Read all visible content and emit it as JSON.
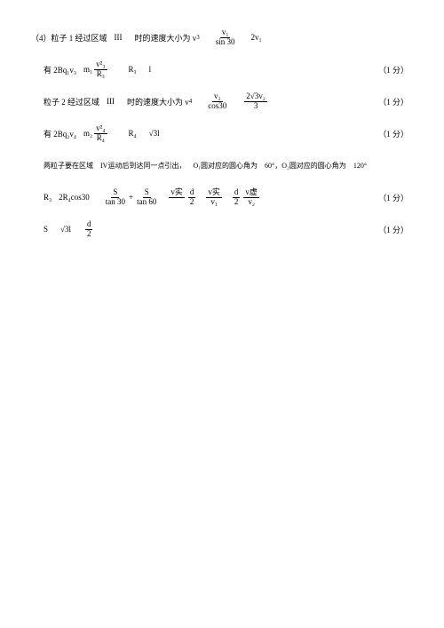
{
  "doc": {
    "lines": [
      {
        "prefix": "（4）粒子 1 经过区域",
        "region": "III",
        "mid": "时的速度大小为 v",
        "sub": "3",
        "rhs_num": "v₁",
        "rhs_den": "sin 30",
        "tail": "2v₁",
        "score": ""
      },
      {
        "prefix": "有 2Bq₁v₃",
        "term": "m₁",
        "frac_num": "v²₃",
        "frac_den": "R₃",
        "after": "R₃",
        "tail": "l",
        "score": "（1 分）"
      },
      {
        "prefix": "粒子 2 经过区域",
        "region": "III",
        "mid": "时的速度大小为 v",
        "sub": "4",
        "rhs_num": "v₂",
        "rhs_den": "cos30",
        "tail_num": "2√3v₂",
        "tail_den": "3",
        "score": "（1 分）"
      },
      {
        "prefix": "有 2Bq₂v₄",
        "term": "m₂",
        "frac_num": "v²₄",
        "frac_den": "R₄",
        "after": "R₄",
        "tail": "√3l",
        "score": "（1 分）"
      },
      {
        "prefix": "两粒子要在区域",
        "region": "IV",
        "mid": "运动后到达同一点引出，",
        "o1": "O₁",
        "text1": "圆对应的圆心角为",
        "ang1": "60°，",
        "o2": "O₂",
        "text2": "圆对应的圆心角为",
        "ang2": "120°",
        "score": ""
      },
      {
        "prefix": "R₃",
        "t1": "2R₄cos30",
        "f1n": "S",
        "f1d": "tan 30",
        "plus1": "+",
        "f2n": "S",
        "f2d": "tan 60",
        "vtop": "v实",
        "f3n": "d",
        "f3d": "2",
        "f4n": "v实",
        "f4d": "v₁",
        "f5n": "d",
        "f5d": "2",
        "f6n": "v虚",
        "f6d": "v₂",
        "score": "（1 分）"
      },
      {
        "prefix": "S",
        "term": "√3l",
        "frac_num": "d",
        "frac_den": "2",
        "score": "（1 分）"
      }
    ]
  }
}
